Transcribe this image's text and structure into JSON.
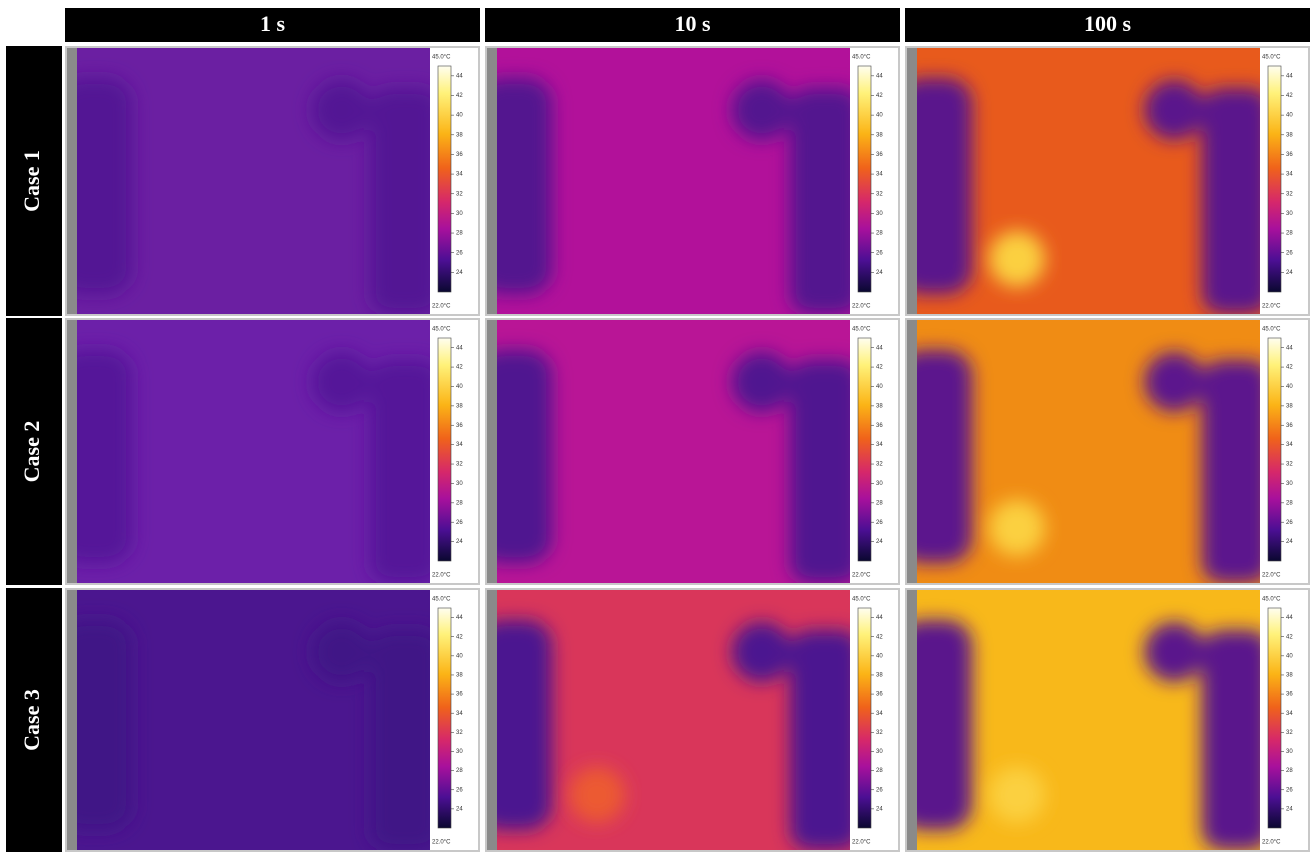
{
  "columns": [
    "1 s",
    "10 s",
    "100 s"
  ],
  "rows": [
    "Case 1",
    "Case 2",
    "Case 3"
  ],
  "colorbar": {
    "max_label": "45.0°C",
    "min_label": "22.0°C",
    "ticks": [
      44,
      42,
      40,
      38,
      36,
      34,
      32,
      30,
      28,
      26,
      24
    ]
  }
}
